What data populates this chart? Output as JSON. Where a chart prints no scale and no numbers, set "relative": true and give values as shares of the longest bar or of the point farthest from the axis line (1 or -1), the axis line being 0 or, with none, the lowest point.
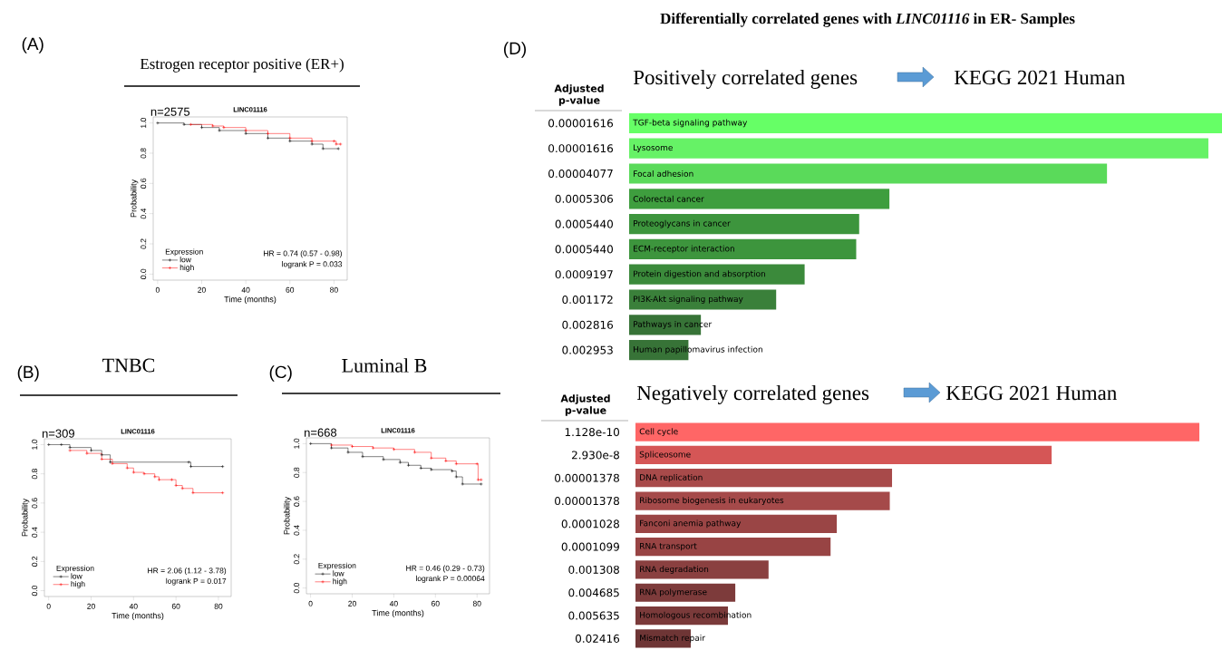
{
  "chart_data": [
    {
      "type": "step",
      "title": "Estrogen receptor positive (ER+)",
      "subtitle": "LINC01116",
      "xlabel": "Time (months)",
      "ylabel": "Probability",
      "legend_title": "Expression",
      "legend": "bottom left",
      "marker": "cross",
      "xlim": [
        -2,
        86
      ],
      "ylim": [
        -0.04,
        1.04
      ],
      "xticks": [
        0,
        20,
        40,
        60,
        80
      ],
      "yticks": [
        {
          "value": 0,
          "label": "0.0"
        },
        {
          "value": 0.2,
          "label": "0.2"
        },
        {
          "value": 0.4,
          "label": "0.4"
        },
        {
          "value": 0.6,
          "label": "0.6"
        },
        {
          "value": 0.8,
          "label": "0.8"
        },
        {
          "value": 1,
          "label": "1.0"
        }
      ],
      "series": [
        {
          "name": "low",
          "color": "#000000",
          "x": [
            0,
            12,
            20,
            28,
            40,
            50,
            60,
            70,
            75,
            82
          ],
          "values": [
            1.0,
            0.99,
            0.97,
            0.95,
            0.93,
            0.9,
            0.88,
            0.86,
            0.83,
            0.83
          ]
        },
        {
          "name": "high",
          "color": "#ff0000",
          "x": [
            15,
            25,
            30,
            40,
            50,
            60,
            70,
            80,
            81,
            83
          ],
          "values": [
            0.99,
            0.98,
            0.97,
            0.95,
            0.93,
            0.9,
            0.88,
            0.88,
            0.86,
            0.86
          ]
        }
      ],
      "annotations": [
        "(A)",
        "n=2575",
        "HR = 0.74 (0.57 - 0.98)",
        "logrank P = 0.033"
      ]
    },
    {
      "type": "step",
      "title": "TNBC",
      "subtitle": "LINC01116",
      "xlabel": "Time (months)",
      "ylabel": "Probability",
      "legend_title": "Expression",
      "legend": "bottom left",
      "marker": "cross",
      "xlim": [
        -2,
        86
      ],
      "ylim": [
        -0.04,
        1.04
      ],
      "xticks": [
        0,
        20,
        40,
        60,
        80
      ],
      "yticks": [
        {
          "value": 0,
          "label": "0.0"
        },
        {
          "value": 0.2,
          "label": "0.2"
        },
        {
          "value": 0.4,
          "label": "0.4"
        },
        {
          "value": 0.6,
          "label": "0.6"
        },
        {
          "value": 0.8,
          "label": "0.8"
        },
        {
          "value": 1,
          "label": "1.0"
        }
      ],
      "series": [
        {
          "name": "low",
          "color": "#000000",
          "x": [
            0,
            6,
            10,
            20,
            25,
            29,
            66,
            67,
            82
          ],
          "values": [
            1.0,
            1.0,
            0.98,
            0.96,
            0.93,
            0.88,
            0.88,
            0.85,
            0.85
          ]
        },
        {
          "name": "high",
          "color": "#ff0000",
          "x": [
            10,
            18,
            25,
            30,
            37,
            40,
            45,
            50,
            52,
            58,
            60,
            63,
            68,
            82
          ],
          "values": [
            0.96,
            0.94,
            0.9,
            0.87,
            0.84,
            0.81,
            0.8,
            0.78,
            0.76,
            0.76,
            0.72,
            0.7,
            0.67,
            0.67
          ]
        }
      ],
      "annotations": [
        "(B)",
        "n=309",
        "HR = 2.06 (1.12 - 3.78)",
        "logrank P = 0.017"
      ]
    },
    {
      "type": "step",
      "title": "Luminal B",
      "subtitle": "LINC01116",
      "xlabel": "Time (months)",
      "ylabel": "Probability",
      "legend_title": "Expression",
      "legend": "bottom left",
      "marker": "cross",
      "xlim": [
        -2,
        86
      ],
      "ylim": [
        -0.04,
        1.04
      ],
      "xticks": [
        0,
        20,
        40,
        60,
        80
      ],
      "yticks": [
        {
          "value": 0,
          "label": "0.0"
        },
        {
          "value": 0.2,
          "label": "0.2"
        },
        {
          "value": 0.4,
          "label": "0.4"
        },
        {
          "value": 0.6,
          "label": "0.6"
        },
        {
          "value": 0.8,
          "label": "0.8"
        },
        {
          "value": 1,
          "label": "1.0"
        }
      ],
      "series": [
        {
          "name": "low",
          "color": "#000000",
          "x": [
            0,
            10,
            18,
            25,
            35,
            43,
            47,
            53,
            58,
            68,
            70,
            73,
            82
          ],
          "values": [
            1.0,
            0.97,
            0.94,
            0.91,
            0.89,
            0.87,
            0.85,
            0.83,
            0.82,
            0.81,
            0.77,
            0.72,
            0.72
          ]
        },
        {
          "name": "high",
          "color": "#ff0000",
          "x": [
            10,
            20,
            30,
            40,
            50,
            58,
            65,
            70,
            80,
            80.5,
            82
          ],
          "values": [
            0.99,
            0.98,
            0.97,
            0.96,
            0.94,
            0.9,
            0.88,
            0.86,
            0.86,
            0.75,
            0.75
          ]
        }
      ],
      "annotations": [
        "(C)",
        "n=668",
        "HR = 0.46 (0.29 - 0.73)",
        "logrank P = 0.00064"
      ]
    },
    {
      "type": "bar",
      "orientation": "horizontal",
      "relative": true,
      "title": "Positively correlated genes",
      "subtitle": "KEGG 2021 Human",
      "ylabel": "Adjusted p-value",
      "categories": [
        "TGF-beta signaling pathway",
        "Lysosome",
        "Focal adhesion",
        "Colorectal cancer",
        "Proteoglycans in cancer",
        "ECM-receptor interaction",
        "Protein digestion and absorption",
        "PI3K-Akt signaling pathway",
        "Pathways in cancer",
        "Human papillomavirus infection"
      ],
      "values": [
        1.0,
        0.977,
        0.806,
        0.439,
        0.388,
        0.383,
        0.296,
        0.248,
        0.121,
        0.1
      ],
      "colors": [
        "#66ff66",
        "#66f266",
        "#5ada5a",
        "#3e9e3e",
        "#3d953d",
        "#3d953d",
        "#3b8a3b",
        "#3a803a",
        "#377337",
        "#377337"
      ],
      "annotations": [
        "(D)",
        "**Differentially correlated genes with *LINC01116* in ER- Samples**",
        "0.00001616",
        "0.00001616",
        "0.00004077",
        "0.0005306",
        "0.0005440",
        "0.0005440",
        "0.0009197",
        "0.001172",
        "0.002816",
        "0.002953"
      ]
    },
    {
      "type": "bar",
      "orientation": "horizontal",
      "relative": true,
      "title": "Negatively correlated genes",
      "subtitle": "KEGG 2021 Human",
      "ylabel": "Adjusted p-value",
      "categories": [
        "Cell cycle",
        "Spliceosome",
        "DNA replication",
        "Ribosome biogenesis in eukaryotes",
        "Fanconi anemia pathway",
        "RNA transport",
        "RNA degradation",
        "RNA polymerase",
        "Homologous recombination",
        "Mismatch repair"
      ],
      "values": [
        1.0,
        0.738,
        0.455,
        0.451,
        0.357,
        0.346,
        0.236,
        0.177,
        0.164,
        0.098
      ],
      "colors": [
        "#ff6666",
        "#d55656",
        "#a84a4a",
        "#a54a4a",
        "#9a4545",
        "#984444",
        "#8a4040",
        "#7d3b3b",
        "#7a3a3a",
        "#6e3535"
      ],
      "annotations": [
        "1.128e-10",
        "2.930e-8",
        "0.00001378",
        "0.00001378",
        "0.0001028",
        "0.0001099",
        "0.001308",
        "0.004685",
        "0.005635",
        "0.02416"
      ]
    }
  ]
}
